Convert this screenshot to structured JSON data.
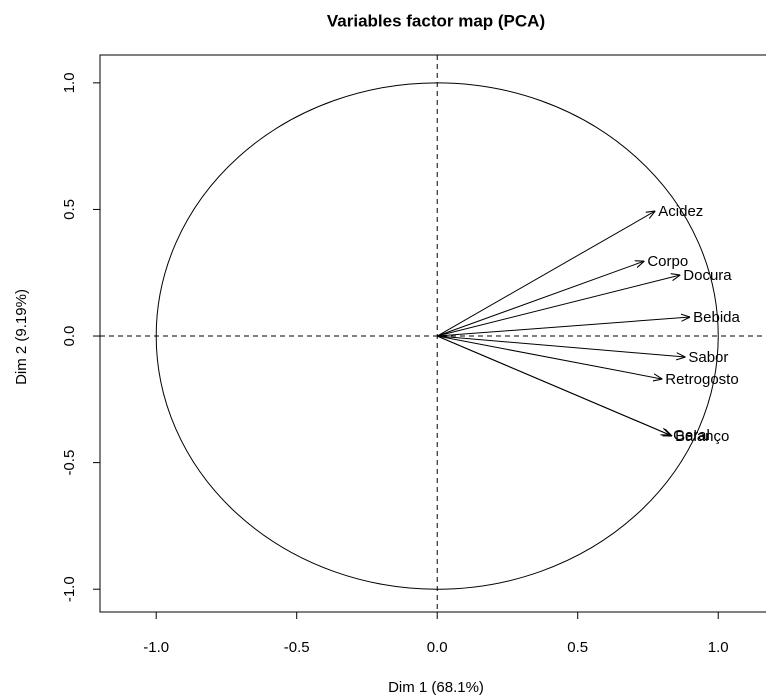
{
  "chart_data": {
    "type": "vector",
    "title": "Variables factor map (PCA)",
    "xlabel": "Dim 1 (68.1%)",
    "ylabel": "Dim 2 (9.19%)",
    "labels": [
      "Acidez",
      "Corpo",
      "Docura",
      "Bebida",
      "Sabor",
      "Retrogosto",
      "Balanço",
      "Geral"
    ],
    "x": [
      0.776,
      0.737,
      0.865,
      0.9,
      0.883,
      0.801,
      0.836,
      0.829
    ],
    "y": [
      0.494,
      0.296,
      0.241,
      0.075,
      -0.083,
      -0.17,
      -0.395,
      -0.391
    ],
    "color": "#000000",
    "xlim": [
      -1.2,
      1.17
    ],
    "ylim": [
      -1.09,
      1.11
    ],
    "xticks": [
      {
        "value": -1,
        "label": "-1.0"
      },
      {
        "value": -0.5,
        "label": "-0.5"
      },
      {
        "value": 0,
        "label": "0.0"
      },
      {
        "value": 0.5,
        "label": "0.5"
      },
      {
        "value": 1,
        "label": "1.0"
      }
    ],
    "yticks": [
      {
        "value": -1,
        "label": "-1.0"
      },
      {
        "value": -0.5,
        "label": "-0.5"
      },
      {
        "value": 0,
        "label": "0.0"
      },
      {
        "value": 0.5,
        "label": "0.5"
      },
      {
        "value": 1,
        "label": "1.0"
      }
    ]
  }
}
